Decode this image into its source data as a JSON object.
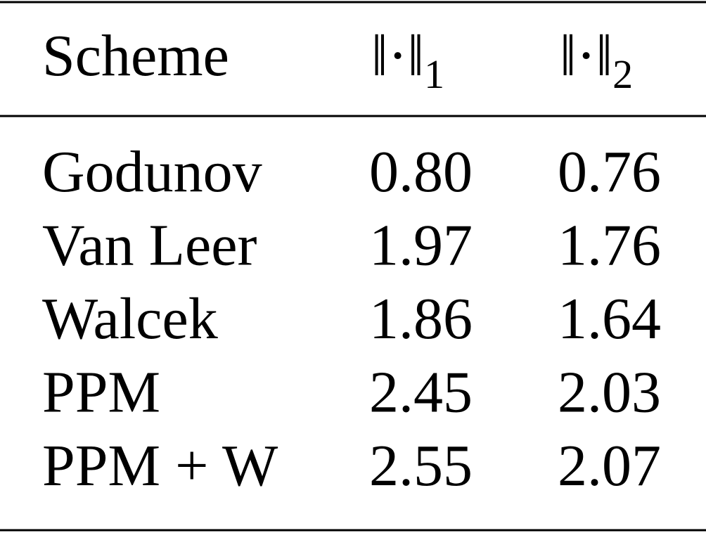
{
  "table": {
    "header": [
      {
        "text": "Scheme"
      },
      {
        "text": "‖·‖",
        "sub": "1"
      },
      {
        "text": "‖·‖",
        "sub": "2"
      }
    ],
    "rows": [
      [
        "Godunov",
        "0.80",
        "0.76"
      ],
      [
        "Van Leer",
        "1.97",
        "1.76"
      ],
      [
        "Walcek",
        "1.86",
        "1.64"
      ],
      [
        "PPM",
        "2.45",
        "2.03"
      ],
      [
        "PPM + W",
        "2.55",
        "2.07"
      ]
    ]
  }
}
